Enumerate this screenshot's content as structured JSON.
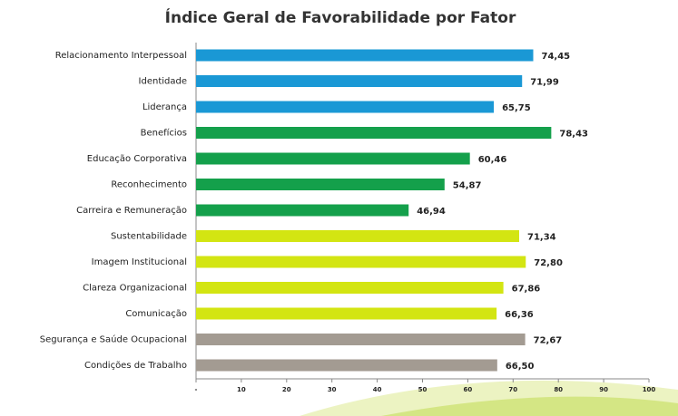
{
  "chart_data": {
    "type": "bar",
    "orientation": "horizontal",
    "title": "Índice Geral de Favorabilidade por Fator",
    "categories": [
      "Relacionamento Interpessoal",
      "Identidade",
      "Liderança",
      "Benefícios",
      "Educação Corporativa",
      "Reconhecimento",
      "Carreira e Remuneração",
      "Sustentabilidade",
      "Imagem Institucional",
      "Clareza Organizacional",
      "Comunicação",
      "Segurança e Saúde Ocupacional",
      "Condições de Trabalho"
    ],
    "values": [
      74.45,
      71.99,
      65.75,
      78.43,
      60.46,
      54.87,
      46.94,
      71.34,
      72.8,
      67.86,
      66.36,
      72.67,
      66.5
    ],
    "value_labels": [
      "74,45",
      "71,99",
      "65,75",
      "78,43",
      "60,46",
      "54,87",
      "46,94",
      "71,34",
      "72,80",
      "67,86",
      "66,36",
      "72,67",
      "66,50"
    ],
    "colors": [
      "#1a98d5",
      "#1a98d5",
      "#1a98d5",
      "#14a04b",
      "#14a04b",
      "#14a04b",
      "#14a04b",
      "#d3e512",
      "#d3e512",
      "#d3e512",
      "#d3e512",
      "#a39b92",
      "#a39b92"
    ],
    "xlim": [
      0,
      100
    ],
    "xticks": [
      {
        "value": 0,
        "label": "-"
      },
      10,
      20,
      30,
      40,
      50,
      60,
      70,
      80,
      90,
      100
    ]
  }
}
